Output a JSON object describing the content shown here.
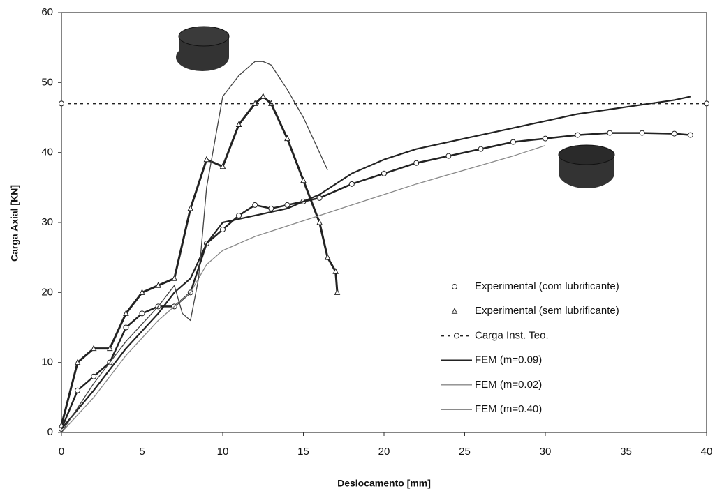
{
  "chart_data": {
    "type": "line",
    "x_label": "Deslocamento [mm]",
    "y_label": "Carga Axial [KN]",
    "xlim": [
      0,
      40
    ],
    "xticks": [
      0,
      5,
      10,
      15,
      20,
      25,
      30,
      35,
      40
    ],
    "ylim": [
      0,
      60
    ],
    "yticks": [
      0,
      10,
      20,
      30,
      40,
      50,
      60
    ],
    "legend": "lower right",
    "series": [
      {
        "name": "Experimental (com lubrificante)",
        "color": "#222222",
        "marker": "circle",
        "width": 2.5,
        "x": [
          0,
          1,
          2,
          3,
          4,
          5,
          6,
          7,
          8,
          9,
          10,
          11,
          12,
          13,
          14,
          15,
          16,
          18,
          20,
          22,
          24,
          26,
          28,
          30,
          32,
          34,
          36,
          38,
          39
        ],
        "values": [
          0.5,
          6,
          8,
          10,
          15,
          17,
          18,
          18,
          20,
          27,
          29,
          31,
          32.5,
          32,
          32.5,
          33,
          33.5,
          35.5,
          37,
          38.5,
          39.5,
          40.5,
          41.5,
          42,
          42.5,
          42.8,
          42.8,
          42.7,
          42.5
        ]
      },
      {
        "name": "Experimental (sem lubrificante)",
        "color": "#222222",
        "marker": "triangle",
        "width": 3,
        "x": [
          0,
          1,
          2,
          3,
          4,
          5,
          6,
          7,
          8,
          9,
          10,
          11,
          12,
          12.5,
          13,
          14,
          15,
          16,
          16.5,
          17,
          17.1
        ],
        "values": [
          1,
          10,
          12,
          12,
          17,
          20,
          21,
          22,
          32,
          39,
          38,
          44,
          47,
          48,
          47,
          42,
          36,
          30,
          25,
          23,
          20
        ]
      },
      {
        "name": "Carga Inst. Teo.",
        "color": "#222222",
        "marker": "circle",
        "dash": true,
        "width": 2,
        "x": [
          0,
          40
        ],
        "values": [
          47,
          47
        ]
      },
      {
        "name": "FEM (m=0.09)",
        "color": "#222222",
        "width": 2.2,
        "x": [
          0,
          2,
          4,
          6,
          7,
          8,
          9,
          10,
          12,
          14,
          16,
          18,
          20,
          22,
          25,
          28,
          30,
          32,
          35,
          38,
          39
        ],
        "values": [
          0.5,
          6,
          12,
          17,
          20,
          22,
          27,
          30,
          31,
          32,
          34,
          37,
          39,
          40.5,
          42,
          43.5,
          44.5,
          45.5,
          46.5,
          47.5,
          48
        ]
      },
      {
        "name": "FEM (m=0.02)",
        "color": "#888888",
        "width": 1.3,
        "x": [
          0,
          2,
          4,
          6,
          8,
          9,
          10,
          12,
          14,
          16,
          18,
          20,
          22,
          25,
          28,
          30
        ],
        "values": [
          0,
          5,
          11,
          16,
          20,
          24,
          26,
          28,
          29.5,
          31,
          32.5,
          34,
          35.5,
          37.5,
          39.5,
          41
        ]
      },
      {
        "name": "FEM (m=0.40)",
        "color": "#444444",
        "width": 1.3,
        "x": [
          0,
          2,
          4,
          6,
          7,
          7.5,
          8,
          8.5,
          9,
          10,
          11,
          12,
          12.5,
          13,
          14,
          15,
          16,
          16.5
        ],
        "values": [
          0,
          7,
          13,
          18,
          21,
          17,
          16,
          22,
          35,
          48,
          51,
          53,
          53,
          52.5,
          49,
          45,
          40,
          37.5
        ]
      }
    ]
  }
}
